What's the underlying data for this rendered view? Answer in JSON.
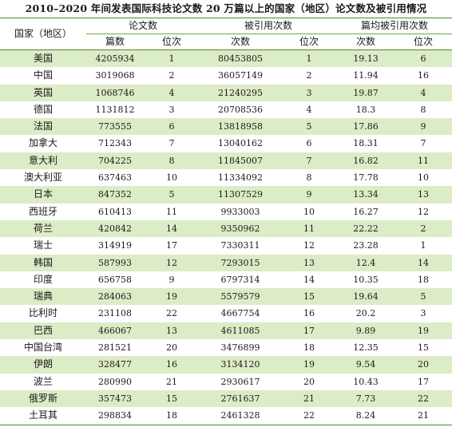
{
  "title": "2010–2020 年间发表国际科技论文数 20 万篇以上的国家（地区）论文数及被引用情况",
  "header": {
    "country": "国家（地区）",
    "papers_group": "论文数",
    "citations_group": "被引用次数",
    "avg_group": "篇均被引用次数",
    "papers_count": "篇数",
    "papers_rank": "位次",
    "citations_count": "次数",
    "citations_rank": "位次",
    "avg_count": "次数",
    "avg_rank": "位次"
  },
  "rows": [
    {
      "country": "美国",
      "papers": "4205934",
      "papers_rank": "1",
      "citations": "80453805",
      "citations_rank": "1",
      "avg": "19.13",
      "avg_rank": "6"
    },
    {
      "country": "中国",
      "papers": "3019068",
      "papers_rank": "2",
      "citations": "36057149",
      "citations_rank": "2",
      "avg": "11.94",
      "avg_rank": "16"
    },
    {
      "country": "英国",
      "papers": "1068746",
      "papers_rank": "4",
      "citations": "21240295",
      "citations_rank": "3",
      "avg": "19.87",
      "avg_rank": "4"
    },
    {
      "country": "德国",
      "papers": "1131812",
      "papers_rank": "3",
      "citations": "20708536",
      "citations_rank": "4",
      "avg": "18.3",
      "avg_rank": "8"
    },
    {
      "country": "法国",
      "papers": "773555",
      "papers_rank": "6",
      "citations": "13818958",
      "citations_rank": "5",
      "avg": "17.86",
      "avg_rank": "9"
    },
    {
      "country": "加拿大",
      "papers": "712343",
      "papers_rank": "7",
      "citations": "13040162",
      "citations_rank": "6",
      "avg": "18.31",
      "avg_rank": "7"
    },
    {
      "country": "意大利",
      "papers": "704225",
      "papers_rank": "8",
      "citations": "11845007",
      "citations_rank": "7",
      "avg": "16.82",
      "avg_rank": "11"
    },
    {
      "country": "澳大利亚",
      "papers": "637463",
      "papers_rank": "10",
      "citations": "11334092",
      "citations_rank": "8",
      "avg": "17.78",
      "avg_rank": "10"
    },
    {
      "country": "日本",
      "papers": "847352",
      "papers_rank": "5",
      "citations": "11307529",
      "citations_rank": "9",
      "avg": "13.34",
      "avg_rank": "13"
    },
    {
      "country": "西班牙",
      "papers": "610413",
      "papers_rank": "11",
      "citations": "9933003",
      "citations_rank": "10",
      "avg": "16.27",
      "avg_rank": "12"
    },
    {
      "country": "荷兰",
      "papers": "420842",
      "papers_rank": "14",
      "citations": "9350962",
      "citations_rank": "11",
      "avg": "22.22",
      "avg_rank": "2"
    },
    {
      "country": "瑞士",
      "papers": "314919",
      "papers_rank": "17",
      "citations": "7330311",
      "citations_rank": "12",
      "avg": "23.28",
      "avg_rank": "1"
    },
    {
      "country": "韩国",
      "papers": "587993",
      "papers_rank": "12",
      "citations": "7293015",
      "citations_rank": "13",
      "avg": "12.4",
      "avg_rank": "14"
    },
    {
      "country": "印度",
      "papers": "656758",
      "papers_rank": "9",
      "citations": "6797314",
      "citations_rank": "14",
      "avg": "10.35",
      "avg_rank": "18"
    },
    {
      "country": "瑞典",
      "papers": "284063",
      "papers_rank": "19",
      "citations": "5579579",
      "citations_rank": "15",
      "avg": "19.64",
      "avg_rank": "5"
    },
    {
      "country": "比利时",
      "papers": "231108",
      "papers_rank": "22",
      "citations": "4667754",
      "citations_rank": "16",
      "avg": "20.2",
      "avg_rank": "3"
    },
    {
      "country": "巴西",
      "papers": "466067",
      "papers_rank": "13",
      "citations": "4611085",
      "citations_rank": "17",
      "avg": "9.89",
      "avg_rank": "19"
    },
    {
      "country": "中国台湾",
      "papers": "281521",
      "papers_rank": "20",
      "citations": "3476899",
      "citations_rank": "18",
      "avg": "12.35",
      "avg_rank": "15"
    },
    {
      "country": "伊朗",
      "papers": "328477",
      "papers_rank": "16",
      "citations": "3134120",
      "citations_rank": "19",
      "avg": "9.54",
      "avg_rank": "20"
    },
    {
      "country": "波兰",
      "papers": "280990",
      "papers_rank": "21",
      "citations": "2930617",
      "citations_rank": "20",
      "avg": "10.43",
      "avg_rank": "17"
    },
    {
      "country": "俄罗斯",
      "papers": "357473",
      "papers_rank": "15",
      "citations": "2761637",
      "citations_rank": "21",
      "avg": "7.73",
      "avg_rank": "22"
    },
    {
      "country": "土耳其",
      "papers": "298834",
      "papers_rank": "18",
      "citations": "2461328",
      "citations_rank": "22",
      "avg": "8.24",
      "avg_rank": "21"
    }
  ],
  "colors": {
    "stripe": "#dcecc7",
    "rule": "#4a8a2a"
  }
}
